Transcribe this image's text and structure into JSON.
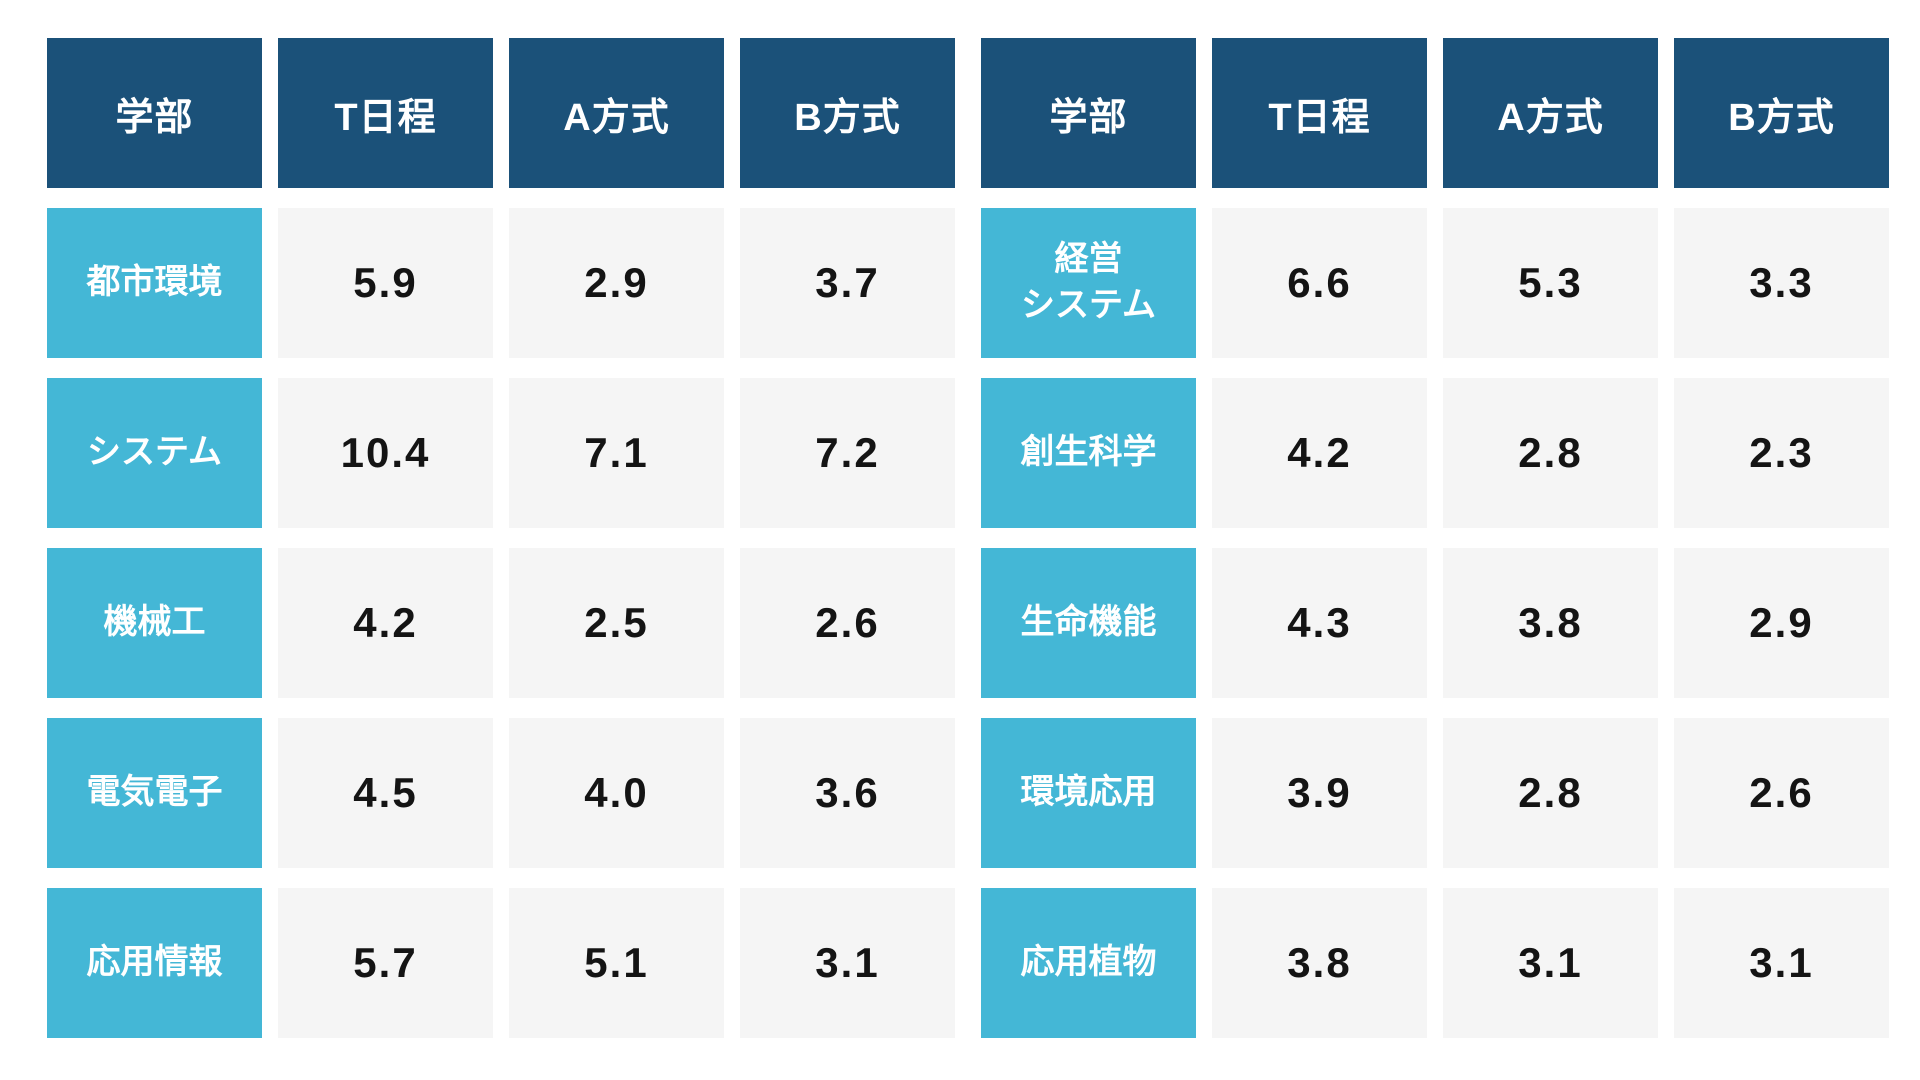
{
  "page": {
    "background": "#ffffff"
  },
  "colors": {
    "page_bg": "#ffffff",
    "header_bg": "#1b5179",
    "label_bg": "#44b7d6",
    "cell_bg": "#f5f5f5",
    "header_text": "#ffffff",
    "value_text": "#141414"
  },
  "chart_data": {
    "type": "table",
    "columns": [
      "学部",
      "T日程",
      "A方式",
      "B方式"
    ],
    "tables": [
      {
        "position": "left",
        "rows": [
          {
            "label": "都市環境",
            "values": [
              "5.9",
              "2.9",
              "3.7"
            ]
          },
          {
            "label": "システム",
            "values": [
              "10.4",
              "7.1",
              "7.2"
            ]
          },
          {
            "label": "機械工",
            "values": [
              "4.2",
              "2.5",
              "2.6"
            ]
          },
          {
            "label": "電気電子",
            "values": [
              "4.5",
              "4.0",
              "3.6"
            ]
          },
          {
            "label": "応用情報",
            "values": [
              "5.7",
              "5.1",
              "3.1"
            ]
          }
        ]
      },
      {
        "position": "right",
        "rows": [
          {
            "label": "経営\nシステム",
            "values": [
              "6.6",
              "5.3",
              "3.3"
            ]
          },
          {
            "label": "創生科学",
            "values": [
              "4.2",
              "2.8",
              "2.3"
            ]
          },
          {
            "label": "生命機能",
            "values": [
              "4.3",
              "3.8",
              "2.9"
            ]
          },
          {
            "label": "環境応用",
            "values": [
              "3.9",
              "2.8",
              "2.6"
            ]
          },
          {
            "label": "応用植物",
            "values": [
              "3.8",
              "3.1",
              "3.1"
            ]
          }
        ]
      }
    ]
  }
}
